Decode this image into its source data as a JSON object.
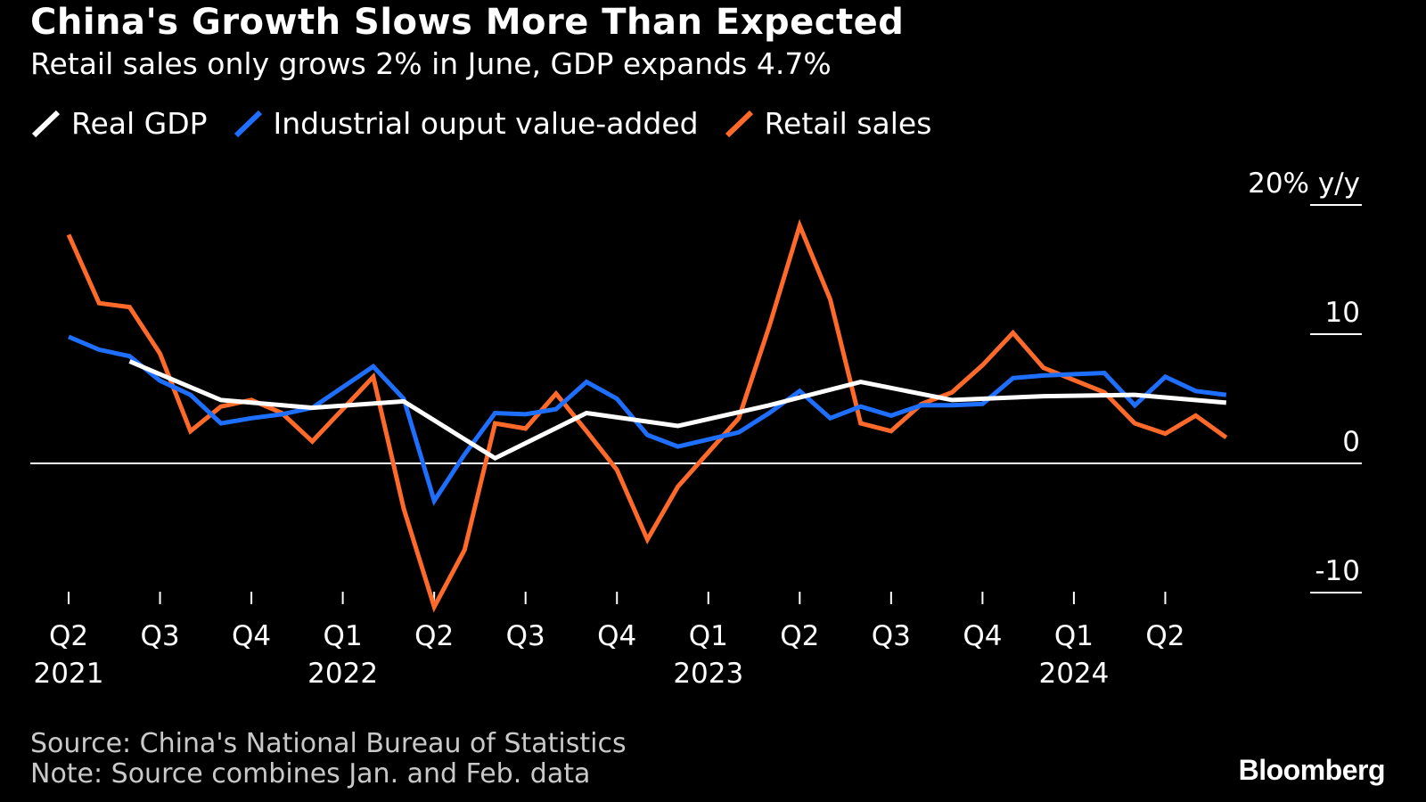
{
  "title": "China's Growth Slows More Than Expected",
  "subtitle": "Retail sales only grows 2% in June, GDP expands 4.7%",
  "legend": [
    {
      "label": "Real GDP",
      "color": "#ffffff"
    },
    {
      "label": "Industrial ouput value-added",
      "color": "#1f6fff"
    },
    {
      "label": "Retail sales",
      "color": "#ff6a2b"
    }
  ],
  "source": "Source: China's National Bureau of Statistics",
  "note": "Note: Source combines Jan. and Feb. data",
  "brand": "Bloomberg",
  "chart_data": {
    "type": "line",
    "title": "China's Growth Slows More Than Expected",
    "subtitle": "Retail sales only grows 2% in June, GDP expands 4.7%",
    "ylabel": "% y/y",
    "ylim": [
      -10,
      20
    ],
    "yticks": [
      {
        "value": 20,
        "label": "20% y/y"
      },
      {
        "value": 10,
        "label": "10"
      },
      {
        "value": 0,
        "label": "0"
      },
      {
        "value": -10,
        "label": "-10"
      }
    ],
    "xlim": [
      "2021-04",
      "2024-07"
    ],
    "xticks": [
      {
        "x": "2021-04",
        "label": "Q2",
        "year": "2021"
      },
      {
        "x": "2021-07",
        "label": "Q3",
        "year": ""
      },
      {
        "x": "2021-10",
        "label": "Q4",
        "year": ""
      },
      {
        "x": "2022-01",
        "label": "Q1",
        "year": "2022"
      },
      {
        "x": "2022-04",
        "label": "Q2",
        "year": ""
      },
      {
        "x": "2022-07",
        "label": "Q3",
        "year": ""
      },
      {
        "x": "2022-10",
        "label": "Q4",
        "year": ""
      },
      {
        "x": "2023-01",
        "label": "Q1",
        "year": "2023"
      },
      {
        "x": "2023-04",
        "label": "Q2",
        "year": ""
      },
      {
        "x": "2023-07",
        "label": "Q3",
        "year": ""
      },
      {
        "x": "2023-10",
        "label": "Q4",
        "year": ""
      },
      {
        "x": "2024-01",
        "label": "Q1",
        "year": "2024"
      },
      {
        "x": "2024-04",
        "label": "Q2",
        "year": ""
      }
    ],
    "grid": false,
    "legend_position": "top-left",
    "series": [
      {
        "name": "Real GDP",
        "color": "#ffffff",
        "points": [
          [
            "2021-06",
            7.9
          ],
          [
            "2021-09",
            4.9
          ],
          [
            "2021-12",
            4.3
          ],
          [
            "2022-03",
            4.8
          ],
          [
            "2022-06",
            0.4
          ],
          [
            "2022-09",
            3.9
          ],
          [
            "2022-12",
            2.9
          ],
          [
            "2023-03",
            4.5
          ],
          [
            "2023-06",
            6.3
          ],
          [
            "2023-09",
            4.9
          ],
          [
            "2023-12",
            5.2
          ],
          [
            "2024-03",
            5.3
          ],
          [
            "2024-06",
            4.7
          ]
        ]
      },
      {
        "name": "Industrial ouput value-added",
        "color": "#1f6fff",
        "points": [
          [
            "2021-04",
            9.8
          ],
          [
            "2021-05",
            8.8
          ],
          [
            "2021-06",
            8.3
          ],
          [
            "2021-07",
            6.4
          ],
          [
            "2021-08",
            5.3
          ],
          [
            "2021-09",
            3.1
          ],
          [
            "2021-10",
            3.5
          ],
          [
            "2021-11",
            3.8
          ],
          [
            "2021-12",
            4.3
          ],
          [
            "2022-02",
            7.5
          ],
          [
            "2022-03",
            5.0
          ],
          [
            "2022-04",
            -2.9
          ],
          [
            "2022-05",
            0.7
          ],
          [
            "2022-06",
            3.9
          ],
          [
            "2022-07",
            3.8
          ],
          [
            "2022-08",
            4.2
          ],
          [
            "2022-09",
            6.3
          ],
          [
            "2022-10",
            5.0
          ],
          [
            "2022-11",
            2.2
          ],
          [
            "2022-12",
            1.3
          ],
          [
            "2023-02",
            2.4
          ],
          [
            "2023-03",
            3.9
          ],
          [
            "2023-04",
            5.6
          ],
          [
            "2023-05",
            3.5
          ],
          [
            "2023-06",
            4.4
          ],
          [
            "2023-07",
            3.7
          ],
          [
            "2023-08",
            4.5
          ],
          [
            "2023-09",
            4.5
          ],
          [
            "2023-10",
            4.6
          ],
          [
            "2023-11",
            6.6
          ],
          [
            "2023-12",
            6.8
          ],
          [
            "2024-02",
            7.0
          ],
          [
            "2024-03",
            4.5
          ],
          [
            "2024-04",
            6.7
          ],
          [
            "2024-05",
            5.6
          ],
          [
            "2024-06",
            5.3
          ]
        ]
      },
      {
        "name": "Retail sales",
        "color": "#ff6a2b",
        "points": [
          [
            "2021-04",
            17.7
          ],
          [
            "2021-05",
            12.4
          ],
          [
            "2021-06",
            12.1
          ],
          [
            "2021-07",
            8.5
          ],
          [
            "2021-08",
            2.5
          ],
          [
            "2021-09",
            4.4
          ],
          [
            "2021-10",
            4.9
          ],
          [
            "2021-11",
            3.9
          ],
          [
            "2021-12",
            1.7
          ],
          [
            "2022-02",
            6.7
          ],
          [
            "2022-03",
            -3.5
          ],
          [
            "2022-04",
            -11.1
          ],
          [
            "2022-05",
            -6.7
          ],
          [
            "2022-06",
            3.1
          ],
          [
            "2022-07",
            2.7
          ],
          [
            "2022-08",
            5.4
          ],
          [
            "2022-09",
            2.5
          ],
          [
            "2022-10",
            -0.5
          ],
          [
            "2022-11",
            -5.9
          ],
          [
            "2022-12",
            -1.8
          ],
          [
            "2023-02",
            3.5
          ],
          [
            "2023-03",
            10.6
          ],
          [
            "2023-04",
            18.4
          ],
          [
            "2023-05",
            12.7
          ],
          [
            "2023-06",
            3.1
          ],
          [
            "2023-07",
            2.5
          ],
          [
            "2023-08",
            4.6
          ],
          [
            "2023-09",
            5.5
          ],
          [
            "2023-10",
            7.6
          ],
          [
            "2023-11",
            10.1
          ],
          [
            "2023-12",
            7.4
          ],
          [
            "2024-02",
            5.5
          ],
          [
            "2024-03",
            3.1
          ],
          [
            "2024-04",
            2.3
          ],
          [
            "2024-05",
            3.7
          ],
          [
            "2024-06",
            2.0
          ]
        ]
      }
    ]
  }
}
